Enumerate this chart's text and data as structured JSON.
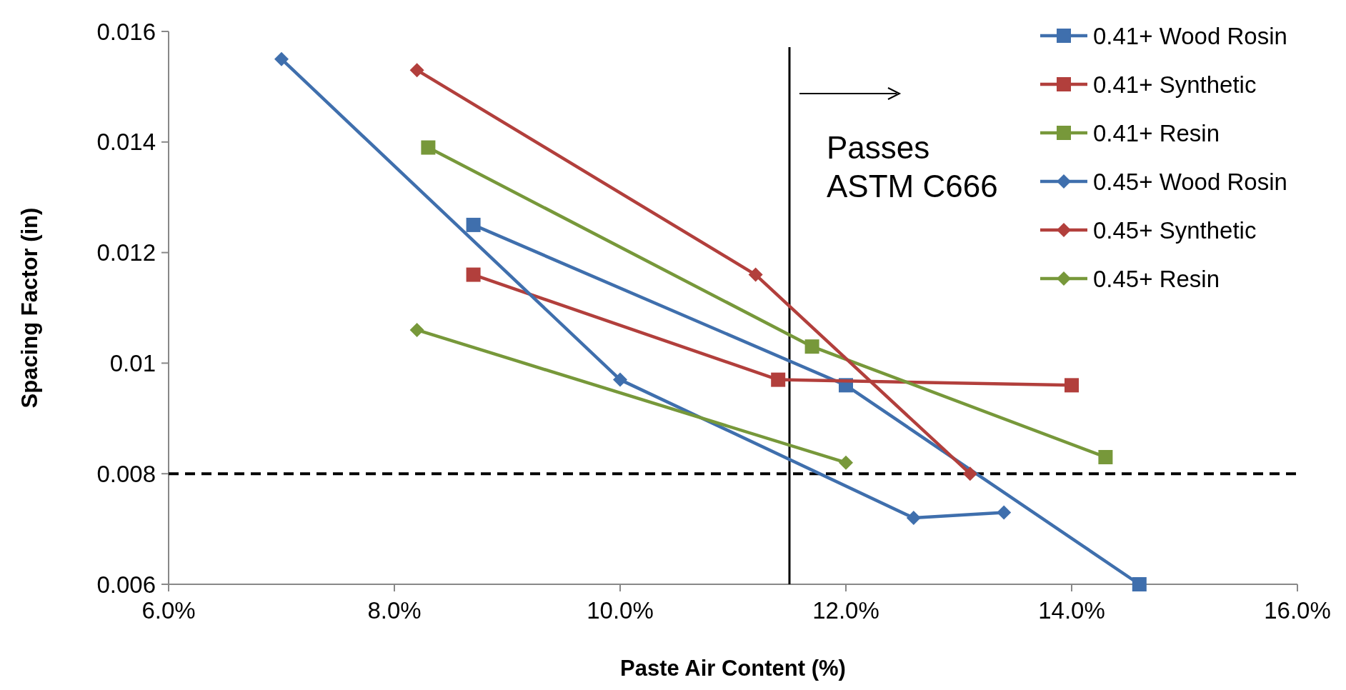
{
  "chart_data": {
    "type": "line",
    "xlabel": "Paste Air Content (%)",
    "ylabel": "Spacing Factor (in)",
    "xlim": [
      6,
      16
    ],
    "xticks": [
      {
        "value": 6,
        "label": "6.0%"
      },
      {
        "value": 8,
        "label": "8.0%"
      },
      {
        "value": 10,
        "label": "10.0%"
      },
      {
        "value": 12,
        "label": "12.0%"
      },
      {
        "value": 14,
        "label": "14.0%"
      },
      {
        "value": 16,
        "label": "16.0%"
      }
    ],
    "ylim": [
      0.006,
      0.016
    ],
    "yticks": [
      0.006,
      0.008,
      0.01,
      0.012,
      0.014,
      0.016
    ],
    "grid": false,
    "legend": "top right",
    "line_style": "solid",
    "series": [
      {
        "name": "0.41+ Wood Rosin",
        "color": "#3f6fad",
        "marker": "square",
        "x": [
          8.7,
          12.0,
          14.6
        ],
        "values": [
          0.0125,
          0.0096,
          0.006
        ]
      },
      {
        "name": "0.41+ Synthetic",
        "color": "#b23f3c",
        "marker": "square",
        "x": [
          8.7,
          11.4,
          14.0
        ],
        "values": [
          0.0116,
          0.0097,
          0.0096
        ]
      },
      {
        "name": "0.41+ Resin",
        "color": "#77983a",
        "marker": "square",
        "x": [
          8.3,
          11.7,
          14.3
        ],
        "values": [
          0.0139,
          0.0103,
          0.0083
        ]
      },
      {
        "name": "0.45+ Wood Rosin",
        "color": "#3f6fad",
        "marker": "diamond",
        "x": [
          7.0,
          10.0,
          12.6,
          13.4
        ],
        "values": [
          0.0155,
          0.0097,
          0.0072,
          0.0073
        ]
      },
      {
        "name": "0.45+ Synthetic",
        "color": "#b23f3c",
        "marker": "diamond",
        "x": [
          8.2,
          11.2,
          13.1
        ],
        "values": [
          0.0153,
          0.0116,
          0.008
        ]
      },
      {
        "name": "0.45+ Resin",
        "color": "#77983a",
        "marker": "diamond",
        "x": [
          8.2,
          12.0
        ],
        "values": [
          0.0106,
          0.0082
        ]
      }
    ],
    "ref_lines": [
      {
        "axis": "x",
        "value": 11.5,
        "label": "Passes ASTM C666",
        "color": "#000000",
        "line_style": "solid"
      },
      {
        "axis": "y",
        "value": 0.008,
        "color": "#000000",
        "line_style": "dashed"
      }
    ]
  }
}
